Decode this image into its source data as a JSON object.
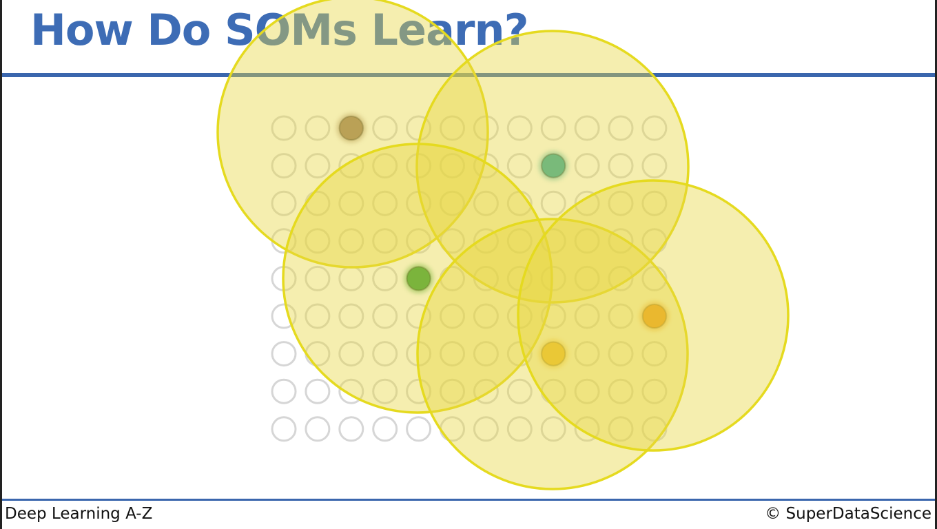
{
  "title": "How Do SOMs Learn?",
  "footer": {
    "course": "Deep Learning A-Z",
    "copyright": "© SuperDataScience"
  },
  "colors": {
    "title": "#3d6cb5",
    "rule": "#3a66ad",
    "node_fill": "#ffffff",
    "node_stroke": "#d6d6d6",
    "neighbourhood_fill": "#e6d640",
    "neighbourhood_stroke": "#e5da1f"
  },
  "grid": {
    "rows": 9,
    "cols": 12
  },
  "winning_nodes": [
    {
      "name": "bmu-brown",
      "row": 0,
      "col": 2,
      "color": "#9a7b66"
    },
    {
      "name": "bmu-teal",
      "row": 1,
      "col": 8,
      "color": "#2aa6a4"
    },
    {
      "name": "bmu-green",
      "row": 4,
      "col": 4,
      "color": "#2e9b3a"
    },
    {
      "name": "bmu-orange",
      "row": 5,
      "col": 11,
      "color": "#f07c10"
    },
    {
      "name": "bmu-amber",
      "row": 6,
      "col": 8,
      "color": "#f2ab24"
    }
  ],
  "neighbourhoods": [
    "neighbourhood-brown",
    "neighbourhood-teal",
    "neighbourhood-green",
    "neighbourhood-amber",
    "neighbourhood-orange"
  ]
}
